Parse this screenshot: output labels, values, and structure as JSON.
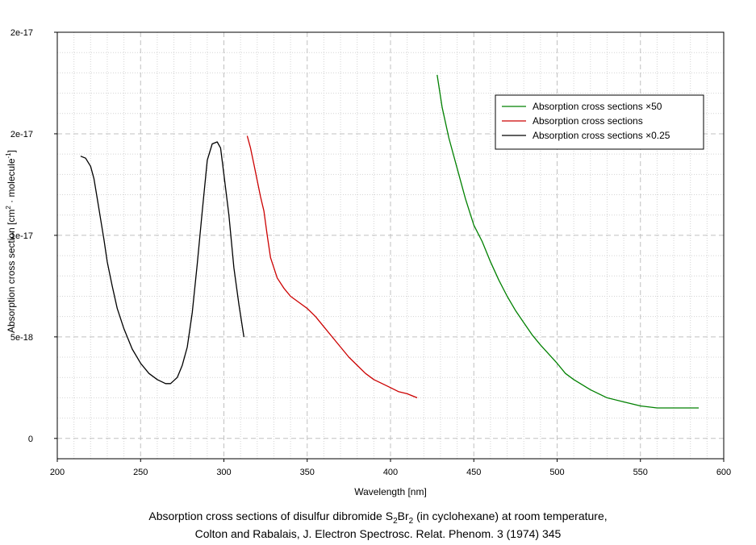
{
  "chart_data": {
    "type": "line",
    "title": "",
    "xlabel": "Wavelength [nm]",
    "ylabel": {
      "prefix": "Absorption cross section [cm",
      "sup1": "2",
      "middle": " · molecule",
      "sup2": "-1",
      "suffix": "]"
    },
    "xlim": [
      200,
      600
    ],
    "ylim": [
      -1e-18,
      2e-17
    ],
    "grid": true,
    "legend_position": "top-right",
    "x_ticks": [
      {
        "value": 200,
        "label": "200"
      },
      {
        "value": 250,
        "label": "250"
      },
      {
        "value": 300,
        "label": "300"
      },
      {
        "value": 350,
        "label": "350"
      },
      {
        "value": 400,
        "label": "400"
      },
      {
        "value": 450,
        "label": "450"
      },
      {
        "value": 500,
        "label": "500"
      },
      {
        "value": 550,
        "label": "550"
      },
      {
        "value": 600,
        "label": "600"
      }
    ],
    "y_ticks": [
      {
        "value": 0,
        "label": "0"
      },
      {
        "value": 5e-18,
        "label": "5e-18"
      },
      {
        "value": 1e-17,
        "label": "1e-17"
      },
      {
        "value": 1.5e-17,
        "label": "2e-17"
      },
      {
        "value": 2e-17,
        "label": "2e-17"
      }
    ],
    "series": [
      {
        "name": "Absorption cross sections ×50",
        "color": "#008000",
        "x": [
          428,
          431,
          435,
          440,
          445,
          450,
          455,
          460,
          465,
          470,
          475,
          480,
          485,
          490,
          500,
          505,
          510,
          520,
          530,
          540,
          550,
          560,
          570,
          585
        ],
        "y": [
          1.79e-17,
          1.63e-17,
          1.48e-17,
          1.33e-17,
          1.18e-17,
          1.05e-17,
          9.7e-18,
          8.7e-18,
          7.8e-18,
          7e-18,
          6.3e-18,
          5.7e-18,
          5.1e-18,
          4.6e-18,
          3.7e-18,
          3.2e-18,
          2.9e-18,
          2.4e-18,
          2e-18,
          1.8e-18,
          1.6e-18,
          1.5e-18,
          1.5e-18,
          1.5e-18
        ]
      },
      {
        "name": "Absorption cross sections",
        "color": "#cc0000",
        "x": [
          314,
          316,
          318,
          320,
          322,
          324,
          326,
          328,
          332,
          336,
          340,
          345,
          350,
          355,
          360,
          365,
          370,
          375,
          380,
          385,
          390,
          395,
          400,
          405,
          410,
          416
        ],
        "y": [
          1.49e-17,
          1.43e-17,
          1.35e-17,
          1.27e-17,
          1.19e-17,
          1.12e-17,
          1e-17,
          8.9e-18,
          7.9e-18,
          7.4e-18,
          7e-18,
          6.7e-18,
          6.4e-18,
          6e-18,
          5.5e-18,
          5e-18,
          4.5e-18,
          4e-18,
          3.6e-18,
          3.2e-18,
          2.9e-18,
          2.7e-18,
          2.5e-18,
          2.3e-18,
          2.2e-18,
          2e-18
        ]
      },
      {
        "name": "Absorption cross sections ×0.25",
        "color": "#000000",
        "x": [
          214,
          217,
          220,
          222,
          224,
          226,
          228,
          230,
          233,
          236,
          240,
          245,
          250,
          255,
          260,
          265,
          268,
          272,
          275,
          278,
          281,
          284,
          287,
          290,
          293,
          296,
          298,
          300,
          303,
          306,
          309,
          312
        ],
        "y": [
          1.39e-17,
          1.38e-17,
          1.34e-17,
          1.28e-17,
          1.18e-17,
          1.08e-17,
          9.8e-18,
          8.7e-18,
          7.5e-18,
          6.4e-18,
          5.4e-18,
          4.4e-18,
          3.7e-18,
          3.2e-18,
          2.9e-18,
          2.7e-18,
          2.7e-18,
          3e-18,
          3.6e-18,
          4.5e-18,
          6.2e-18,
          8.6e-18,
          1.12e-17,
          1.37e-17,
          1.45e-17,
          1.46e-17,
          1.43e-17,
          1.3e-17,
          1.1e-17,
          8.4e-18,
          6.6e-18,
          5e-18
        ]
      }
    ]
  },
  "caption": {
    "line1_a": "Absorption cross sections of disulfur dibromide S",
    "line1_sub1": "2",
    "line1_b": "Br",
    "line1_sub2": "2",
    "line1_c": " (in cyclohexane) at room temperature,",
    "line2": "Colton and Rabalais,  J. Electron Spectrosc. Relat. Phenom. 3 (1974) 345"
  }
}
